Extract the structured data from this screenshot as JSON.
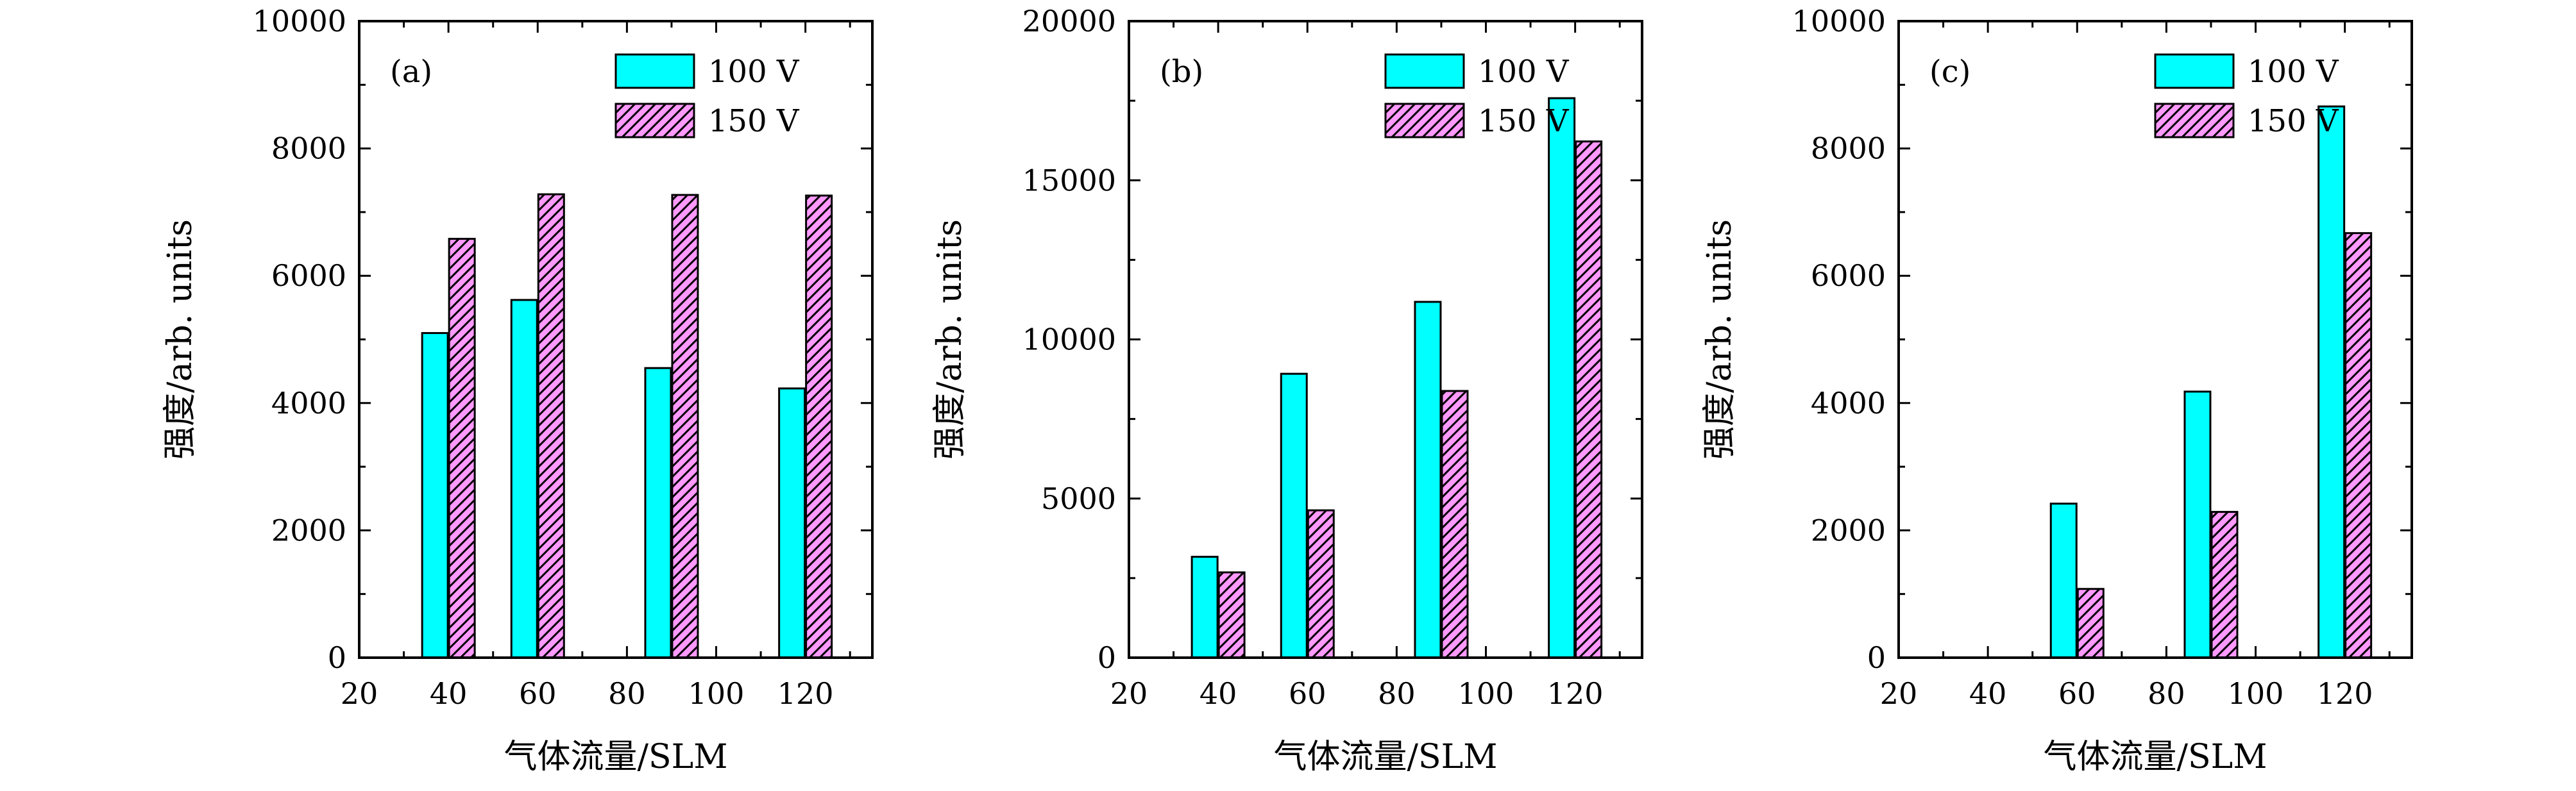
{
  "colors": {
    "series_100v": "#00FFFF",
    "series_150v_fill": "#FF99FF",
    "series_150v_hatch": "#000000",
    "axis": "#000000"
  },
  "chart_data": [
    {
      "type": "bar",
      "panel_label": "(a)",
      "xlabel": "气体流量/SLM",
      "ylabel": "强度/arb. units",
      "xlim": [
        20,
        135
      ],
      "ylim": [
        0,
        10000
      ],
      "xticks": [
        "20",
        "40",
        "60",
        "80",
        "100",
        "120"
      ],
      "yticks": [
        "0",
        "2000",
        "4000",
        "6000",
        "8000",
        "10000"
      ],
      "categories": [
        40,
        60,
        90,
        120
      ],
      "series": [
        {
          "name": "100 V",
          "values": [
            5100,
            5620,
            4550,
            4230
          ]
        },
        {
          "name": "150 V",
          "values": [
            6580,
            7280,
            7270,
            7260
          ]
        }
      ],
      "legend": "top-right"
    },
    {
      "type": "bar",
      "panel_label": "(b)",
      "xlabel": "气体流量/SLM",
      "ylabel": "强度/arb. units",
      "xlim": [
        20,
        135
      ],
      "ylim": [
        0,
        20000
      ],
      "xticks": [
        "20",
        "40",
        "60",
        "80",
        "100",
        "120"
      ],
      "yticks": [
        "0",
        "5000",
        "10000",
        "15000",
        "20000"
      ],
      "categories": [
        40,
        60,
        90,
        120
      ],
      "series": [
        {
          "name": "100 V",
          "values": [
            3170,
            8920,
            11180,
            17580
          ]
        },
        {
          "name": "150 V",
          "values": [
            2680,
            4630,
            8380,
            16220
          ]
        }
      ],
      "legend": "top-right"
    },
    {
      "type": "bar",
      "panel_label": "(c)",
      "xlabel": "气体流量/SLM",
      "ylabel": "强度/arb. units",
      "xlim": [
        20,
        135
      ],
      "ylim": [
        0,
        10000
      ],
      "xticks": [
        "20",
        "40",
        "60",
        "80",
        "100",
        "120"
      ],
      "yticks": [
        "0",
        "2000",
        "4000",
        "6000",
        "8000",
        "10000"
      ],
      "categories": [
        60,
        90,
        120
      ],
      "series": [
        {
          "name": "100 V",
          "values": [
            2420,
            4180,
            8660
          ]
        },
        {
          "name": "150 V",
          "values": [
            1080,
            2290,
            6670
          ]
        }
      ],
      "legend": "top-right"
    }
  ]
}
